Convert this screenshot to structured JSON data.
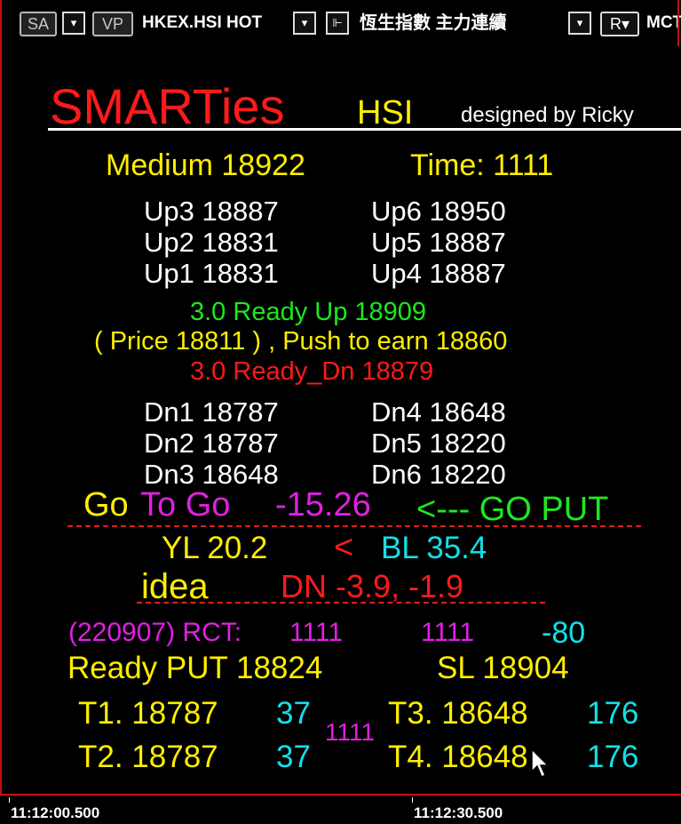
{
  "toolbar": {
    "sa": "SA",
    "vp": "VP",
    "symbol": "HKEX.HSI HOT",
    "index_name": "恆生指數 主力連續",
    "r": "R",
    "mc": "MCT"
  },
  "title": {
    "smarties": "SMARTies",
    "hsi": "HSI",
    "designed": "designed by Ricky"
  },
  "info": {
    "medium": "Medium 18922",
    "time": "Time:  1111"
  },
  "ups": {
    "up3": "Up3  18887",
    "up6": "Up6  18950",
    "up2": "Up2  18831",
    "up5": "Up5  18887",
    "up1": "Up1  18831",
    "up4": "Up4  18887"
  },
  "ready_up": "3.0 Ready Up   18909",
  "price_line": "( Price 18811 ) ,  Push to earn  18860",
  "ready_dn": "3.0 Ready_Dn  18879",
  "dns": {
    "dn1": "Dn1  18787",
    "dn4": "Dn4  18648",
    "dn2": "Dn2  18787",
    "dn5": "Dn5  18220",
    "dn3": "Dn3  18648",
    "dn6": "Dn6  18220"
  },
  "go": {
    "go": "Go",
    "to_go": "To Go",
    "value": "-15.26",
    "put": "<--- GO PUT"
  },
  "yl_bl": {
    "yl": "YL  20.2",
    "lt": "<",
    "bl": "BL  35.4"
  },
  "idea": {
    "label": "idea",
    "value": "DN   -3.9,  -1.9"
  },
  "rct": {
    "label": "(220907) RCT:",
    "v1": "1111",
    "v2": "1111",
    "v3": "-80"
  },
  "ready_put": {
    "put": "Ready PUT  18824",
    "sl": "SL  18904"
  },
  "targets": {
    "t1": "T1.  18787",
    "t1_pts": "37",
    "t2": "T2.  18787",
    "t2_pts": "37",
    "mid": "1111",
    "t3": "T3. 18648",
    "t3_pts": "176",
    "t4": "T4. 18648",
    "t4_pts": "176"
  },
  "timeline": {
    "left": "11:12:00.500",
    "right": "11:12:30.500"
  },
  "colors": {
    "background": "#000000",
    "yellow": "#ffee00",
    "red": "#ff1a1a",
    "green": "#1ee81e",
    "magenta": "#e020e0",
    "cyan": "#14e0e8"
  }
}
